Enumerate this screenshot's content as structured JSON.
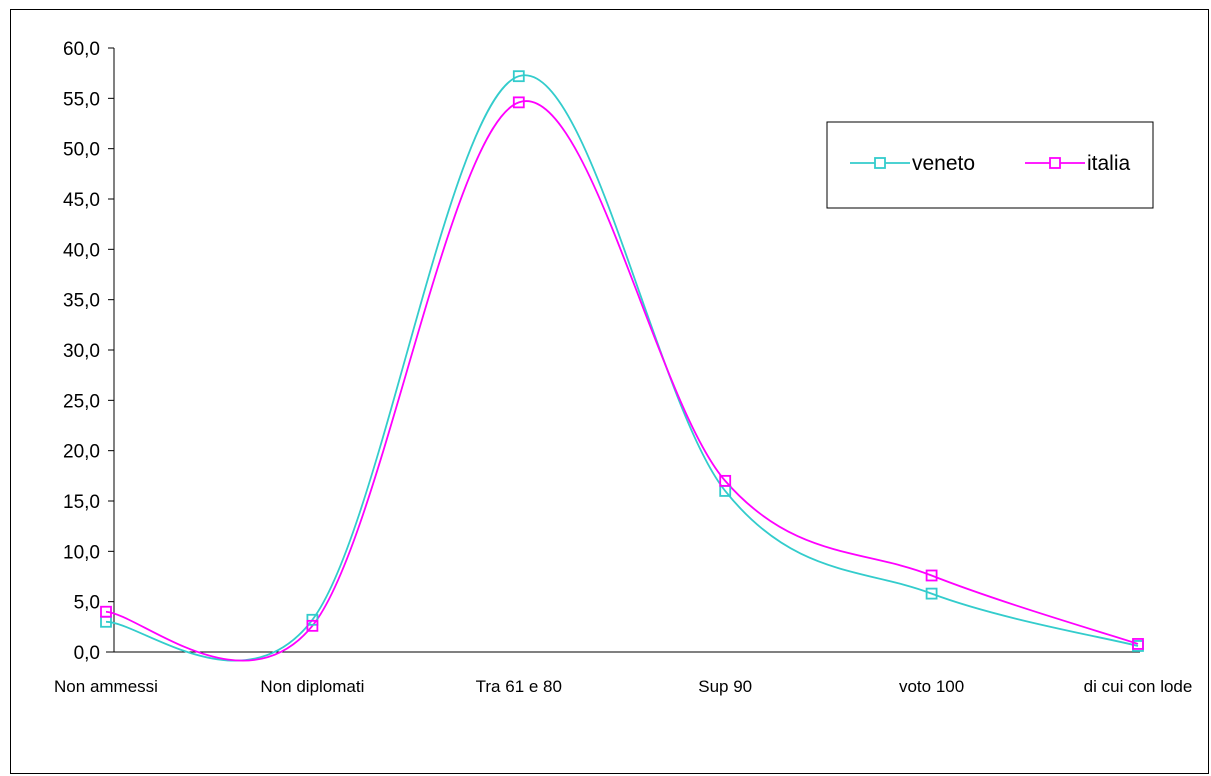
{
  "chart_data": {
    "type": "line",
    "categories": [
      "Non ammessi",
      "Non diplomati",
      "Tra 61 e 80",
      "Sup 90",
      "voto 100",
      "di cui con lode"
    ],
    "series": [
      {
        "name": "veneto",
        "values": [
          3.0,
          3.2,
          57.2,
          16.0,
          5.8,
          0.6
        ],
        "color": "#33cccc"
      },
      {
        "name": "italia",
        "values": [
          4.0,
          2.6,
          54.6,
          17.0,
          7.6,
          0.8
        ],
        "color": "#ff00ff"
      }
    ],
    "yticks": [
      "60,0",
      "55,0",
      "50,0",
      "45,0",
      "40,0",
      "35,0",
      "30,0",
      "25,0",
      "20,0",
      "15,0",
      "10,0",
      "5,0",
      "0,0"
    ],
    "ylim": [
      0,
      60
    ],
    "ystep": 5,
    "smooth": true,
    "marker": "square",
    "grid": false,
    "legend_position": "top-right"
  }
}
